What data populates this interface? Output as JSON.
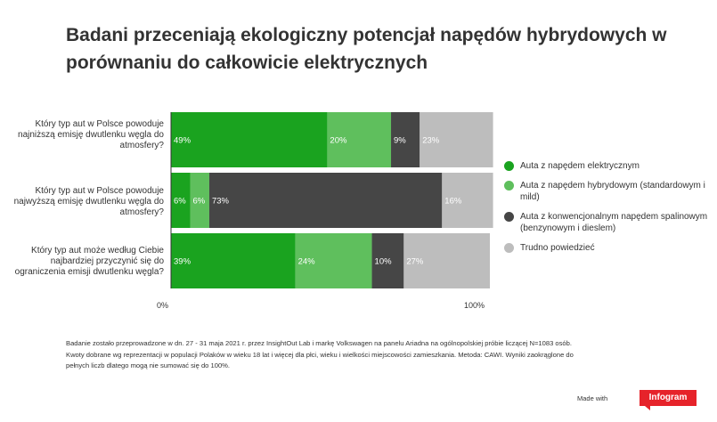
{
  "title": "Badani przeceniają ekologiczny potencjał napędów hybrydowych w porównaniu do całkowicie elektrycznych",
  "chart_data": {
    "type": "bar",
    "orientation": "horizontal",
    "stacked": "percent",
    "categories": [
      "Który typ aut w Polsce powoduje najniższą emisję dwutlenku węgla do atmosfery?",
      "Który typ aut w Polsce powoduje najwyższą emisję dwutlenku węgla do atmosfery?",
      "Który typ aut może według Ciebie najbardziej przyczynić się do ograniczenia emisji dwutlenku węgla?"
    ],
    "series": [
      {
        "name": "Auta z napędem elektrycznym",
        "color": "#1aa31f",
        "values": [
          49,
          6,
          39
        ]
      },
      {
        "name": "Auta z napędem hybrydowym (standardowym i mild)",
        "color": "#5fbf5d",
        "values": [
          20,
          6,
          24
        ]
      },
      {
        "name": "Auta z konwencjonalnym napędem spalinowym (benzynowym i dieslem)",
        "color": "#464646",
        "values": [
          9,
          73,
          10
        ]
      },
      {
        "name": "Trudno powiedzieć",
        "color": "#bdbdbd",
        "values": [
          23,
          16,
          27
        ]
      }
    ],
    "xlim": [
      0,
      100
    ],
    "x_tick_labels": [
      "0%",
      "100%"
    ],
    "value_suffix": "%",
    "legend_position": "right"
  },
  "footnote": [
    "Badanie zostało przeprowadzone w dn. 27 - 31 maja 2021 r. przez InsightOut Lab i markę Volkswagen na panelu Ariadna na ogólnopolskiej próbie liczącej N=1083 osób.",
    "Kwoty dobrane wg reprezentacji w populacji Polaków w wieku 18 lat i więcej dla płci, wieku i wielkości miejscowości zamieszkania. Metoda: CAWI. Wyniki zaokrąglone do",
    "pełnych liczb dlatego mogą nie sumować się do 100%."
  ],
  "branding": {
    "made_with": "Made with",
    "brand": "Infogram"
  }
}
